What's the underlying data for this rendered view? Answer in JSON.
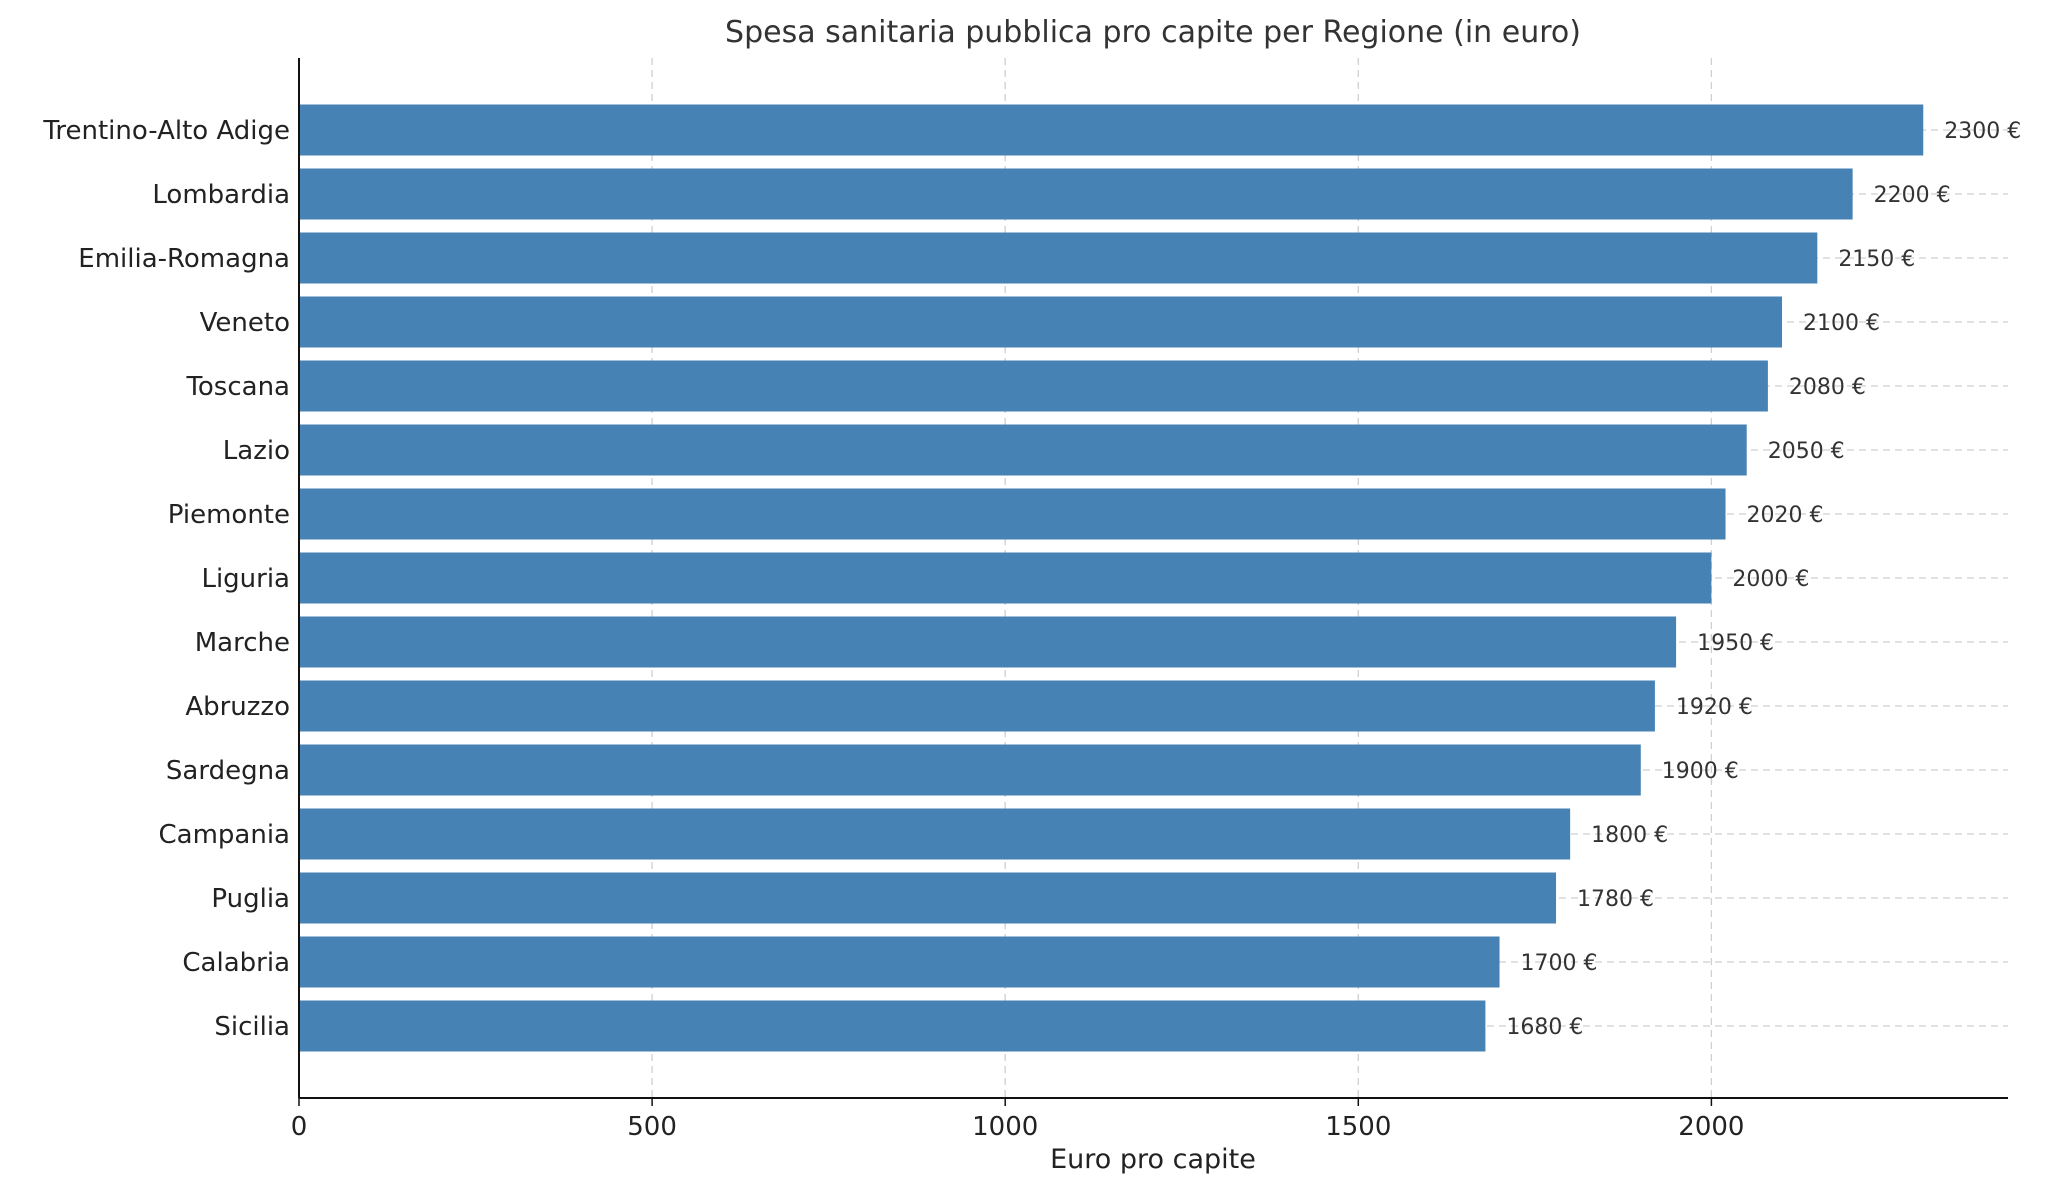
{
  "chart_data": {
    "type": "bar",
    "orientation": "horizontal",
    "title": "Spesa sanitaria pubblica pro capite per Regione (in euro)",
    "xlabel": "Euro pro capite",
    "ylabel": "",
    "xlim": [
      0,
      2420
    ],
    "xticks": [
      0,
      500,
      1000,
      1500,
      2000
    ],
    "grid": true,
    "legend": "none",
    "bar_color": "#4682b4",
    "value_suffix": " €",
    "categories": [
      "Trentino-Alto Adige",
      "Lombardia",
      "Emilia-Romagna",
      "Veneto",
      "Toscana",
      "Lazio",
      "Piemonte",
      "Liguria",
      "Marche",
      "Abruzzo",
      "Sardegna",
      "Campania",
      "Puglia",
      "Calabria",
      "Sicilia"
    ],
    "values": [
      2300,
      2200,
      2150,
      2100,
      2080,
      2050,
      2020,
      2000,
      1950,
      1920,
      1900,
      1800,
      1780,
      1700,
      1680
    ],
    "data_labels": [
      "2300 €",
      "2200 €",
      "2150 €",
      "2100 €",
      "2080 €",
      "2050 €",
      "2020 €",
      "2000 €",
      "1950 €",
      "1920 €",
      "1900 €",
      "1800 €",
      "1780 €",
      "1700 €",
      "1680 €"
    ]
  }
}
